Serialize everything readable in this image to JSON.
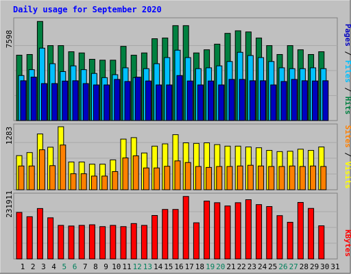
{
  "chart_data": [
    {
      "type": "bar",
      "title": "Daily usage for September 2020",
      "ymax_label": "7598",
      "ylim": [
        0,
        7598
      ],
      "categories": [
        "1",
        "2",
        "3",
        "4",
        "5",
        "6",
        "7",
        "8",
        "9",
        "10",
        "11",
        "12",
        "13",
        "14",
        "15",
        "16",
        "17",
        "18",
        "19",
        "20",
        "21",
        "22",
        "23",
        "24",
        "25",
        "26",
        "27",
        "28",
        "29",
        "30"
      ],
      "series": [
        {
          "name": "Hits",
          "color": "#008040",
          "values": [
            4967,
            5021,
            7532,
            5696,
            5696,
            5231,
            5139,
            4656,
            4589,
            4589,
            5639,
            4967,
            5139,
            6218,
            6274,
            7213,
            7213,
            5139,
            5379,
            5807,
            6626,
            6821,
            6735,
            6274,
            5696,
            5021,
            5696,
            5379,
            5021,
            5231
          ]
        },
        {
          "name": "Files",
          "color": "#00c0ff",
          "values": [
            3422,
            3868,
            5502,
            4321,
            3722,
            4156,
            3868,
            3581,
            3262,
            3486,
            4009,
            3262,
            3944,
            4321,
            4785,
            5347,
            4785,
            3944,
            4009,
            4156,
            4487,
            5188,
            4941,
            4785,
            4487,
            4009,
            3944,
            3944,
            4009,
            3944
          ]
        },
        {
          "name": "Pages",
          "color": "#0000c0",
          "values": [
            3026,
            3304,
            2812,
            2813,
            3002,
            3026,
            2812,
            2708,
            2708,
            3127,
            2970,
            3303,
            3009,
            2708,
            2708,
            3422,
            3009,
            2708,
            3009,
            2708,
            3127,
            3127,
            3026,
            3026,
            2708,
            2970,
            3127,
            3026,
            3009,
            3026
          ]
        }
      ],
      "axis_labels_right": [
        "Pages",
        "Files",
        "Hits"
      ]
    },
    {
      "type": "bar",
      "ymax_label": "1283",
      "ylim": [
        0,
        1283
      ],
      "series": [
        {
          "name": "Visits",
          "color": "#ffff00",
          "values": [
            695,
            757,
            1136,
            866,
            1283,
            565,
            565,
            521,
            521,
            608,
            1031,
            1061,
            749,
            888,
            934,
            1121,
            955,
            944,
            955,
            919,
            888,
            888,
            871,
            855,
            801,
            777,
            784,
            826,
            801,
            871
          ]
        },
        {
          "name": "Sites",
          "color": "#ff8000",
          "values": [
            484,
            484,
            814,
            491,
            911,
            326,
            326,
            279,
            279,
            370,
            648,
            691,
            444,
            444,
            478,
            588,
            555,
            474,
            455,
            474,
            474,
            484,
            499,
            484,
            474,
            474,
            484,
            474,
            484,
            474
          ]
        }
      ],
      "axis_labels_right": [
        "Sites",
        "Visits"
      ]
    },
    {
      "type": "bar",
      "ymax_label": "231911",
      "ylim": [
        0,
        231911
      ],
      "series": [
        {
          "name": "KBytes",
          "color": "#ff0000",
          "values": [
            171234,
            155430,
            185613,
            151489,
            123545,
            121287,
            123545,
            125800,
            119033,
            123545,
            119033,
            130313,
            123545,
            160004,
            182218,
            182218,
            230000,
            133125,
            213035,
            207000,
            195000,
            207000,
            218000,
            200000,
            192875,
            159432,
            135000,
            208000,
            186000,
            122000
          ]
        }
      ],
      "axis_labels_right": [
        "KBytes"
      ]
    }
  ],
  "x_axis": {
    "labels": [
      "1",
      "2",
      "3",
      "4",
      "5",
      "6",
      "7",
      "8",
      "9",
      "10",
      "11",
      "12",
      "13",
      "14",
      "15",
      "16",
      "17",
      "18",
      "19",
      "20",
      "21",
      "22",
      "23",
      "24",
      "25",
      "26",
      "27",
      "28",
      "29",
      "30",
      "31"
    ],
    "weekend_days": [
      "5",
      "6",
      "12",
      "13",
      "19",
      "20",
      "26",
      "27"
    ],
    "weekday_color": "#000000",
    "weekend_color": "#00805c"
  },
  "colors": {
    "background": "#c0c0c0",
    "title": "#0000ff"
  }
}
